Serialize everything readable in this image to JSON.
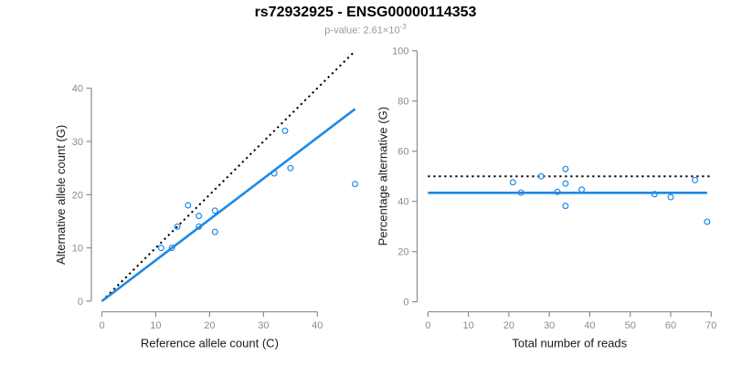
{
  "header": {
    "title": "rs72932925 - ENSG00000114353",
    "subtitle_prefix": "p-value: 2.61×10",
    "subtitle_exponent": "-3"
  },
  "colors": {
    "accent_blue": "#1E88E5",
    "reference_line_black": "#000000",
    "axis_gray": "#8C8C8C",
    "axis_title_dark": "#1A1A1A",
    "subtitle_gray": "#999999"
  },
  "chart_data": [
    {
      "type": "scatter",
      "name": "allele-count-scatter",
      "title": "",
      "xlabel": "Reference allele count (C)",
      "ylabel": "Alternative allele count (G)",
      "xlim": [
        0,
        40
      ],
      "ylim": [
        0,
        40
      ],
      "xticks": [
        0,
        10,
        20,
        30,
        40
      ],
      "yticks": [
        0,
        10,
        20,
        30,
        40
      ],
      "grid": false,
      "points": [
        [
          11,
          10
        ],
        [
          13,
          10
        ],
        [
          14,
          14
        ],
        [
          16,
          18
        ],
        [
          18,
          14
        ],
        [
          18,
          16
        ],
        [
          21,
          13
        ],
        [
          21,
          17
        ],
        [
          32,
          24
        ],
        [
          34,
          32
        ],
        [
          35,
          25
        ],
        [
          47,
          22
        ]
      ],
      "lines": [
        {
          "name": "identity-line",
          "style": "dotted",
          "color_key": "reference_line_black",
          "from": [
            0,
            0
          ],
          "to": [
            47,
            47
          ]
        },
        {
          "name": "fit-line",
          "style": "solid",
          "color_key": "accent_blue",
          "from": [
            0,
            0
          ],
          "to": [
            47,
            36.1
          ]
        }
      ]
    },
    {
      "type": "scatter",
      "name": "percentage-scatter",
      "title": "",
      "xlabel": "Total number of reads",
      "ylabel": "Percentage alternative (G)",
      "xlim": [
        0,
        70
      ],
      "ylim": [
        0,
        100
      ],
      "xticks": [
        0,
        10,
        20,
        30,
        40,
        50,
        60,
        70
      ],
      "yticks": [
        0,
        20,
        40,
        60,
        80,
        100
      ],
      "grid": false,
      "points": [
        [
          21,
          47.6
        ],
        [
          23,
          43.5
        ],
        [
          28,
          50.0
        ],
        [
          32,
          43.8
        ],
        [
          34,
          38.2
        ],
        [
          34,
          47.1
        ],
        [
          34,
          52.9
        ],
        [
          38,
          44.7
        ],
        [
          56,
          42.9
        ],
        [
          60,
          41.7
        ],
        [
          66,
          48.5
        ],
        [
          69,
          31.9
        ]
      ],
      "lines": [
        {
          "name": "expected-50pct-line",
          "style": "dotted",
          "color_key": "reference_line_black",
          "from": [
            0,
            50
          ],
          "to": [
            70,
            50
          ]
        },
        {
          "name": "mean-percentage-line",
          "style": "solid",
          "color_key": "accent_blue",
          "from": [
            0,
            43.4
          ],
          "to": [
            69,
            43.4
          ]
        }
      ]
    }
  ]
}
